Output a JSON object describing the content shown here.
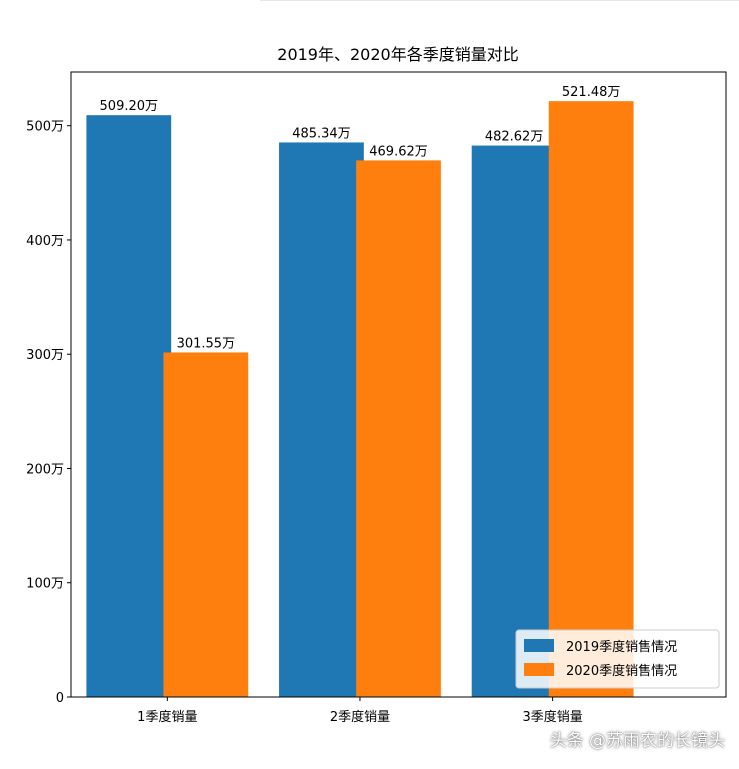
{
  "chart_data": {
    "type": "bar",
    "title": "2019年、2020年各季度销量对比",
    "categories": [
      "1季度销量",
      "2季度销量",
      "3季度销量"
    ],
    "series": [
      {
        "name": "2019季度销售情况",
        "color": "#1f77b4",
        "values": [
          509.2,
          485.34,
          482.62
        ],
        "labels": [
          "509.20万",
          "485.34万",
          "482.62万"
        ]
      },
      {
        "name": "2020季度销售情况",
        "color": "#ff7f0e",
        "values": [
          301.55,
          469.62,
          521.48
        ],
        "labels": [
          "301.55万",
          "469.62万",
          "521.48万"
        ]
      }
    ],
    "ylim": [
      0,
      547
    ],
    "yticks": [
      {
        "value": 0,
        "label": "0"
      },
      {
        "value": 100,
        "label": "100万"
      },
      {
        "value": 200,
        "label": "200万"
      },
      {
        "value": 300,
        "label": "300万"
      },
      {
        "value": 400,
        "label": "400万"
      },
      {
        "value": 500,
        "label": "500万"
      }
    ],
    "legend_position": "bottom-right",
    "grid": false
  },
  "watermark": "头条 @苏雨农的长镜头"
}
